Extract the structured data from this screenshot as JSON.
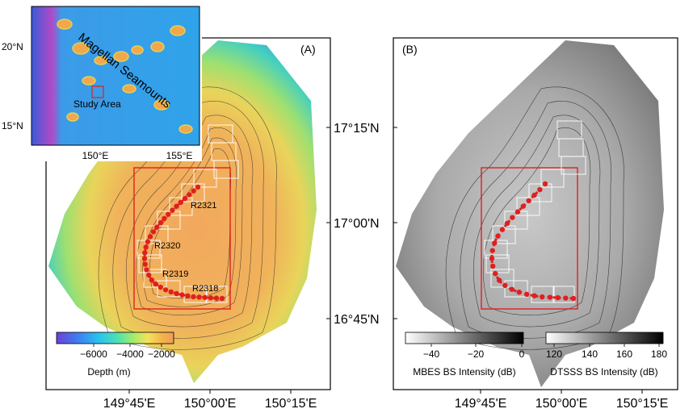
{
  "panel_a": {
    "label": "(A)",
    "lat_ticks": [
      "17°15'N",
      "17°00'N",
      "16°45'N"
    ],
    "lon_ticks": [
      "149°45'E",
      "150°00'E",
      "150°15'E"
    ],
    "colorbar": {
      "ticks": [
        "−6000",
        "−4000",
        "−2000"
      ],
      "label": "Depth (m)",
      "colors": [
        "#6e3fd8",
        "#3f7df0",
        "#28c3f0",
        "#4fe0b0",
        "#a6ec6a",
        "#f4e35a",
        "#f5b44c",
        "#f29a5c"
      ]
    },
    "survey_lines": [
      "R2321",
      "R2320",
      "R2319",
      "R2318"
    ],
    "inset": {
      "lat_ticks": [
        "20°N",
        "15°N"
      ],
      "lon_ticks": [
        "150°E",
        "155°E"
      ],
      "region_label": "Magellan Seamounts",
      "study_label": "Study Area"
    }
  },
  "panel_b": {
    "label": "(B)",
    "lat_ticks": [
      "17°15'N",
      "17°00'N",
      "16°45'N"
    ],
    "lon_ticks": [
      "149°45'E",
      "150°00'E",
      "150°15'E"
    ],
    "colorbar_mbes": {
      "ticks": [
        "−40",
        "−20",
        "0"
      ],
      "label": "MBES BS Intensity (dB)"
    },
    "colorbar_dtsss": {
      "ticks": [
        "120",
        "140",
        "160",
        "180"
      ],
      "label": "DTSSS BS Intensity (dB)"
    }
  },
  "colors": {
    "box": "#e0201e",
    "points": "#e0201e",
    "frame": "#000000"
  }
}
